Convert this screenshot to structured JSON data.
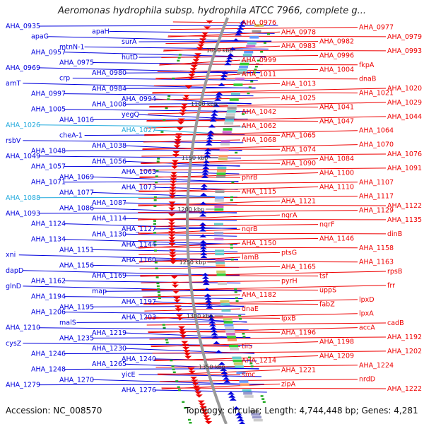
{
  "title": "Aeromonas hydrophila subsp. hydrophila ATCC 7966, complete g...",
  "accession_text": "Accession: NC_008570",
  "topology_text": "Topology: circular; Length: 4,744,448 bp; Genes: 4,281",
  "colors": {
    "left_strand": "#0000dd",
    "right_strand": "#ee0000",
    "highlight": "#22aadd",
    "backbone": "#999999"
  },
  "scale_labels": [
    "1050 kbp",
    "1100 kbp",
    "1150 kbp",
    "1200 kbp",
    "1250 kbp",
    "1300 kbp",
    "1350 kbp"
  ],
  "left_genes": [
    "AHA_0935",
    "apaH",
    "apaG",
    "surA",
    "mtnN-1",
    "AHA_0957",
    "hutD",
    "AHA_0975",
    "AHA_0969",
    "AHA_0980",
    "crp",
    "arnT",
    "AHA_0984",
    "AHA_0997",
    "AHA_0994",
    "AHA_1008",
    "AHA_1005",
    "yegQ",
    "AHA_1016",
    "AHA_1026",
    "AHA_1027",
    "cheA-1",
    "rsbV",
    "AHA_1038",
    "AHA_1048",
    "AHA_1049",
    "AHA_1056",
    "AHA_1057",
    "AHA_1063",
    "AHA_1069",
    "AHA_1071",
    "AHA_1073",
    "AHA_1077",
    "AHA_1088",
    "AHA_1087",
    "AHA_1086",
    "AHA_1093",
    "AHA_1114",
    "AHA_1124",
    "AHA_1127",
    "AHA_1130",
    "AHA_1134",
    "AHA_1144",
    "AHA_1151",
    "xni",
    "AHA_1160",
    "AHA_1156",
    "dapD",
    "AHA_1169",
    "AHA_1162",
    "glnD",
    "map",
    "AHA_1194",
    "AHA_1197",
    "AHA_1195",
    "AHA_1206",
    "AHA_1203",
    "malS",
    "AHA_1210",
    "AHA_1219",
    "AHA_1235",
    "cysZ",
    "AHA_1230",
    "AHA_1246",
    "AHA_1240",
    "AHA_1265",
    "AHA_1248",
    "yicE",
    "AHA_1270",
    "AHA_1279",
    "AHA_1276"
  ],
  "right_genes": [
    "AHA_0976",
    "AHA_0977",
    "AHA_0978",
    "AHA_0979",
    "AHA_0982",
    "AHA_0983",
    "AHA_0993",
    "AHA_0996",
    "AHA_0999",
    "fkpA",
    "AHA_1004",
    "AHA_1011",
    "dnaB",
    "AHA_1013",
    "AHA_1020",
    "AHA_1021",
    "AHA_1025",
    "AHA_1029",
    "AHA_1041",
    "AHA_1042",
    "AHA_1044",
    "AHA_1047",
    "AHA_1062",
    "AHA_1064",
    "AHA_1065",
    "AHA_1068",
    "AHA_1070",
    "AHA_1074",
    "AHA_1076",
    "AHA_1084",
    "AHA_1090",
    "AHA_1091",
    "AHA_1100",
    "phrB",
    "AHA_1107",
    "AHA_1110",
    "AHA_1115",
    "AHA_1117",
    "AHA_1121",
    "AHA_1122",
    "AHA_1129",
    "nqrA",
    "AHA_1135",
    "nqrF",
    "nqrB",
    "dinB",
    "AHA_1146",
    "AHA_1150",
    "AHA_1158",
    "ptsG",
    "lamB",
    "AHA_1163",
    "AHA_1165",
    "rpsB",
    "tsf",
    "pyrH",
    "frr",
    "uppS",
    "AHA_1182",
    "lpxD",
    "fabZ",
    "dnaE",
    "lpxA",
    "lpxB",
    "cadB",
    "accA",
    "AHA_1196",
    "AHA_1192",
    "AHA_1198",
    "tilS",
    "AHA_1202",
    "AHA_1209",
    "AHA_1214",
    "AHA_1224",
    "AHA_1221",
    "smc",
    "nrdD",
    "zipA",
    "AHA_1222"
  ]
}
